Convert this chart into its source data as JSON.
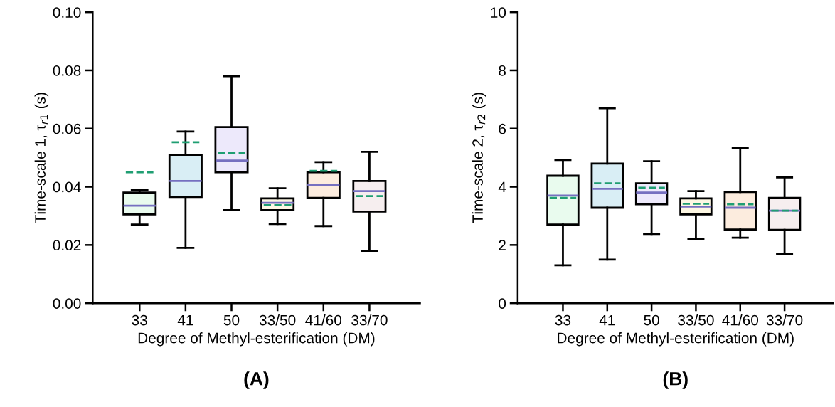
{
  "chart_data": [
    {
      "type": "box",
      "xlabel": "Degree of Methyl-esterification (DM)",
      "ylabel": "Time-scale 1, τ$_{r1}$ (s)",
      "categories": [
        "33",
        "41",
        "50",
        "33/50",
        "41/60",
        "33/70"
      ],
      "colors": [
        "#e9fbee",
        "#d9eef5",
        "#ede9fb",
        "#fdf7e3",
        "#fcecde",
        "#f6eeef"
      ],
      "boxes": [
        {
          "low": 0.027,
          "q1": 0.0305,
          "median": 0.0335,
          "q3": 0.038,
          "high": 0.039,
          "mean": 0.045
        },
        {
          "low": 0.019,
          "q1": 0.0365,
          "median": 0.042,
          "q3": 0.051,
          "high": 0.059,
          "mean": 0.0553
        },
        {
          "low": 0.032,
          "q1": 0.045,
          "median": 0.049,
          "q3": 0.0605,
          "high": 0.078,
          "mean": 0.0517
        },
        {
          "low": 0.0272,
          "q1": 0.032,
          "median": 0.0345,
          "q3": 0.036,
          "high": 0.0395,
          "mean": 0.0337
        },
        {
          "low": 0.0265,
          "q1": 0.0362,
          "median": 0.0405,
          "q3": 0.045,
          "high": 0.0485,
          "mean": 0.0455
        },
        {
          "low": 0.018,
          "q1": 0.0315,
          "median": 0.0385,
          "q3": 0.042,
          "high": 0.052,
          "mean": 0.0368
        }
      ],
      "ylim": [
        0,
        0.1
      ],
      "yticks": [
        {
          "value": 0,
          "label": "0.00"
        },
        {
          "value": 0.02,
          "label": "0.02"
        },
        {
          "value": 0.04,
          "label": "0.04"
        },
        {
          "value": 0.06,
          "label": "0.06"
        },
        {
          "value": 0.08,
          "label": "0.08"
        },
        {
          "value": 0.1,
          "label": "0.10"
        }
      ],
      "grid": false,
      "annotations": [
        "(A)"
      ]
    },
    {
      "type": "box",
      "xlabel": "Degree of Methyl-esterification (DM)",
      "ylabel": "Time-scale 2, τ$_{r2}$ (s)",
      "categories": [
        "33",
        "41",
        "50",
        "33/50",
        "41/60",
        "33/70"
      ],
      "colors": [
        "#e9fbee",
        "#d9eef5",
        "#ede9fb",
        "#fdf7e3",
        "#fcecde",
        "#f6eeef"
      ],
      "boxes": [
        {
          "low": 1.3,
          "q1": 2.7,
          "median": 3.7,
          "q3": 4.38,
          "high": 4.92,
          "mean": 3.62
        },
        {
          "low": 1.5,
          "q1": 3.28,
          "median": 3.93,
          "q3": 4.8,
          "high": 6.7,
          "mean": 4.12
        },
        {
          "low": 2.38,
          "q1": 3.4,
          "median": 3.8,
          "q3": 4.12,
          "high": 4.88,
          "mean": 3.97
        },
        {
          "low": 2.2,
          "q1": 3.05,
          "median": 3.32,
          "q3": 3.6,
          "high": 3.85,
          "mean": 3.42
        },
        {
          "low": 2.25,
          "q1": 2.53,
          "median": 3.28,
          "q3": 3.82,
          "high": 5.33,
          "mean": 3.4
        },
        {
          "low": 1.68,
          "q1": 2.52,
          "median": 3.18,
          "q3": 3.62,
          "high": 4.32,
          "mean": 3.18
        }
      ],
      "ylim": [
        0,
        10
      ],
      "yticks": [
        0,
        2,
        4,
        6,
        8,
        10
      ],
      "grid": false,
      "annotations": [
        "(B)"
      ]
    }
  ]
}
